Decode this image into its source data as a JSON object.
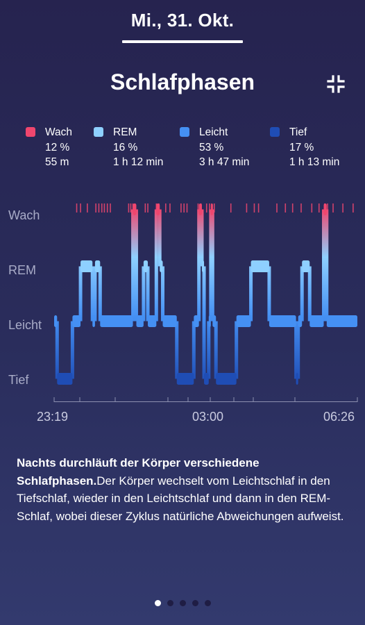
{
  "header": {
    "date": "Mi., 31. Okt."
  },
  "screen": {
    "title": "Schlafphasen",
    "collapse_icon": "collapse-icon"
  },
  "legend": [
    {
      "name": "Wach",
      "percent": "12 %",
      "duration": "55 m",
      "color": "#f0466e"
    },
    {
      "name": "REM",
      "percent": "16 %",
      "duration": "1 h 12 min",
      "color": "#8ed0ff"
    },
    {
      "name": "Leicht",
      "percent": "53 %",
      "duration": "3 h 47 min",
      "color": "#4590f3"
    },
    {
      "name": "Tief",
      "percent": "17 %",
      "duration": "1 h 13 min",
      "color": "#1f4db5"
    }
  ],
  "chart_data": {
    "type": "step",
    "stages": [
      "Wach",
      "REM",
      "Leicht",
      "Tief"
    ],
    "x_ticks": [
      "23:19",
      "03:00",
      "06:26"
    ],
    "x_range_hours": [
      0,
      7.12
    ],
    "segments": [
      {
        "stage": "Leicht",
        "start": 0.0,
        "end": 0.07
      },
      {
        "stage": "Tief",
        "start": 0.07,
        "end": 0.43
      },
      {
        "stage": "Leicht",
        "start": 0.43,
        "end": 0.62
      },
      {
        "stage": "REM",
        "start": 0.62,
        "end": 0.9
      },
      {
        "stage": "Leicht",
        "start": 0.9,
        "end": 0.96
      },
      {
        "stage": "REM",
        "start": 0.96,
        "end": 1.08
      },
      {
        "stage": "Leicht",
        "start": 1.08,
        "end": 1.85
      },
      {
        "stage": "Wach",
        "start": 1.85,
        "end": 1.93
      },
      {
        "stage": "Leicht",
        "start": 1.93,
        "end": 2.1
      },
      {
        "stage": "REM",
        "start": 2.1,
        "end": 2.2
      },
      {
        "stage": "Leicht",
        "start": 2.2,
        "end": 2.4
      },
      {
        "stage": "Wach",
        "start": 2.4,
        "end": 2.48
      },
      {
        "stage": "REM",
        "start": 2.48,
        "end": 2.55
      },
      {
        "stage": "Leicht",
        "start": 2.55,
        "end": 2.88
      },
      {
        "stage": "Tief",
        "start": 2.88,
        "end": 3.28
      },
      {
        "stage": "Leicht",
        "start": 3.28,
        "end": 3.4
      },
      {
        "stage": "Wach",
        "start": 3.4,
        "end": 3.47
      },
      {
        "stage": "REM",
        "start": 3.47,
        "end": 3.52
      },
      {
        "stage": "Tief",
        "start": 3.52,
        "end": 3.63
      },
      {
        "stage": "Leicht",
        "start": 3.63,
        "end": 3.68
      },
      {
        "stage": "Wach",
        "start": 3.68,
        "end": 3.72
      },
      {
        "stage": "Leicht",
        "start": 3.72,
        "end": 3.8
      },
      {
        "stage": "Tief",
        "start": 3.8,
        "end": 4.28
      },
      {
        "stage": "Leicht",
        "start": 4.28,
        "end": 4.62
      },
      {
        "stage": "REM",
        "start": 4.62,
        "end": 5.05
      },
      {
        "stage": "Leicht",
        "start": 5.05,
        "end": 5.68
      },
      {
        "stage": "Tief",
        "start": 5.68,
        "end": 5.73
      },
      {
        "stage": "Leicht",
        "start": 5.73,
        "end": 5.82
      },
      {
        "stage": "REM",
        "start": 5.82,
        "end": 6.0
      },
      {
        "stage": "Leicht",
        "start": 6.0,
        "end": 6.33
      },
      {
        "stage": "Wach",
        "start": 6.33,
        "end": 6.4
      },
      {
        "stage": "Leicht",
        "start": 6.4,
        "end": 7.12
      }
    ],
    "wake_ticks": [
      0.53,
      0.62,
      0.78,
      0.98,
      1.05,
      1.12,
      1.18,
      1.25,
      1.32,
      1.75,
      1.8,
      1.85,
      1.9,
      2.14,
      2.2,
      2.4,
      2.46,
      2.62,
      2.72,
      2.98,
      3.05,
      3.12,
      3.38,
      3.45,
      3.58,
      3.65,
      3.7,
      3.76,
      4.15,
      4.52,
      4.7,
      4.8,
      5.23,
      5.43,
      5.6,
      5.8,
      6.05,
      6.22,
      6.35,
      6.42,
      6.55,
      6.78,
      7.02
    ]
  },
  "description": {
    "bold": "Nachts durchläuft der Körper verschiedene Schlafphasen.",
    "text": "Der Körper wechselt vom Leichtschlaf in den Tiefschlaf, wieder in den Leichtschlaf und dann in den REM-Schlaf, wobei dieser Zyklus natürliche Abweichungen aufweist."
  },
  "pager": {
    "count": 5,
    "active": 0
  }
}
